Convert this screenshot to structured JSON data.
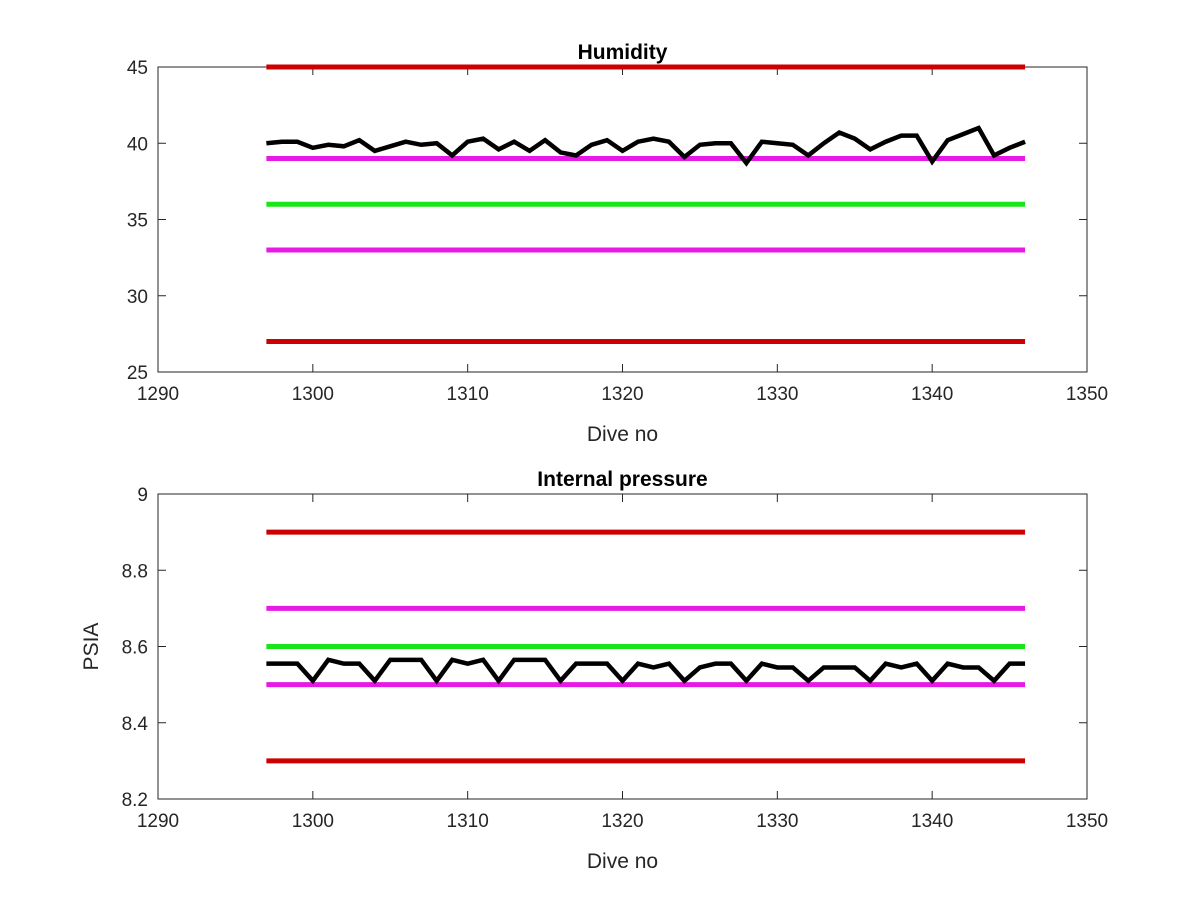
{
  "chart_data": [
    {
      "type": "line",
      "title": "Humidity",
      "xlabel": "Dive no",
      "ylabel": "",
      "xlim": [
        1290,
        1350
      ],
      "ylim": [
        25,
        45
      ],
      "x_ticks": [
        "1290",
        "1300",
        "1310",
        "1320",
        "1330",
        "1340",
        "1350"
      ],
      "y_ticks": [
        "25",
        "30",
        "35",
        "40",
        "45"
      ],
      "grid": false,
      "thresholds": [
        {
          "y": 45,
          "x_range": [
            1297,
            1346
          ],
          "color": "#cc0000"
        },
        {
          "y": 39,
          "x_range": [
            1297,
            1346
          ],
          "color": "#e619e6"
        },
        {
          "y": 36,
          "x_range": [
            1297,
            1346
          ],
          "color": "#19e619"
        },
        {
          "y": 33,
          "x_range": [
            1297,
            1346
          ],
          "color": "#e619e6"
        },
        {
          "y": 27,
          "x_range": [
            1297,
            1346
          ],
          "color": "#cc0000"
        }
      ],
      "series": [
        {
          "color": "#000000",
          "x": [
            1297,
            1298,
            1299,
            1300,
            1301,
            1302,
            1303,
            1304,
            1305,
            1306,
            1307,
            1308,
            1309,
            1310,
            1311,
            1312,
            1313,
            1314,
            1315,
            1316,
            1317,
            1318,
            1319,
            1320,
            1321,
            1322,
            1323,
            1324,
            1325,
            1326,
            1327,
            1328,
            1329,
            1330,
            1331,
            1332,
            1333,
            1334,
            1335,
            1336,
            1337,
            1338,
            1339,
            1340,
            1341,
            1342,
            1343,
            1344,
            1345,
            1346
          ],
          "values": [
            40.0,
            40.1,
            40.1,
            39.7,
            39.9,
            39.8,
            40.2,
            39.5,
            39.8,
            40.1,
            39.9,
            40.0,
            39.2,
            40.1,
            40.3,
            39.6,
            40.1,
            39.5,
            40.2,
            39.4,
            39.2,
            39.9,
            40.2,
            39.5,
            40.1,
            40.3,
            40.1,
            39.1,
            39.9,
            40.0,
            40.0,
            38.7,
            40.1,
            40.0,
            39.9,
            39.2,
            40.0,
            40.7,
            40.3,
            39.6,
            40.1,
            40.5,
            40.5,
            38.8,
            40.2,
            40.6,
            41.0,
            39.2,
            39.7,
            40.1
          ]
        }
      ]
    },
    {
      "type": "line",
      "title": "Internal pressure",
      "xlabel": "Dive no",
      "ylabel": "PSIA",
      "xlim": [
        1290,
        1350
      ],
      "ylim": [
        8.2,
        9
      ],
      "x_ticks": [
        "1290",
        "1300",
        "1310",
        "1320",
        "1330",
        "1340",
        "1350"
      ],
      "y_ticks": [
        "8.2",
        "8.4",
        "8.6",
        "8.8",
        "9"
      ],
      "grid": false,
      "thresholds": [
        {
          "y": 8.9,
          "x_range": [
            1297,
            1346
          ],
          "color": "#cc0000"
        },
        {
          "y": 8.7,
          "x_range": [
            1297,
            1346
          ],
          "color": "#e619e6"
        },
        {
          "y": 8.6,
          "x_range": [
            1297,
            1346
          ],
          "color": "#19e619"
        },
        {
          "y": 8.5,
          "x_range": [
            1297,
            1346
          ],
          "color": "#e619e6"
        },
        {
          "y": 8.3,
          "x_range": [
            1297,
            1346
          ],
          "color": "#cc0000"
        }
      ],
      "series": [
        {
          "color": "#000000",
          "x": [
            1297,
            1298,
            1299,
            1300,
            1301,
            1302,
            1303,
            1304,
            1305,
            1306,
            1307,
            1308,
            1309,
            1310,
            1311,
            1312,
            1313,
            1314,
            1315,
            1316,
            1317,
            1318,
            1319,
            1320,
            1321,
            1322,
            1323,
            1324,
            1325,
            1326,
            1327,
            1328,
            1329,
            1330,
            1331,
            1332,
            1333,
            1334,
            1335,
            1336,
            1337,
            1338,
            1339,
            1340,
            1341,
            1342,
            1343,
            1344,
            1345,
            1346
          ],
          "values": [
            8.555,
            8.555,
            8.555,
            8.51,
            8.565,
            8.555,
            8.555,
            8.51,
            8.565,
            8.565,
            8.565,
            8.51,
            8.565,
            8.555,
            8.565,
            8.51,
            8.565,
            8.565,
            8.565,
            8.51,
            8.555,
            8.555,
            8.555,
            8.51,
            8.555,
            8.545,
            8.555,
            8.51,
            8.545,
            8.555,
            8.555,
            8.51,
            8.555,
            8.545,
            8.545,
            8.51,
            8.545,
            8.545,
            8.545,
            8.51,
            8.555,
            8.545,
            8.555,
            8.51,
            8.555,
            8.545,
            8.545,
            8.51,
            8.555,
            8.555
          ]
        }
      ]
    }
  ]
}
